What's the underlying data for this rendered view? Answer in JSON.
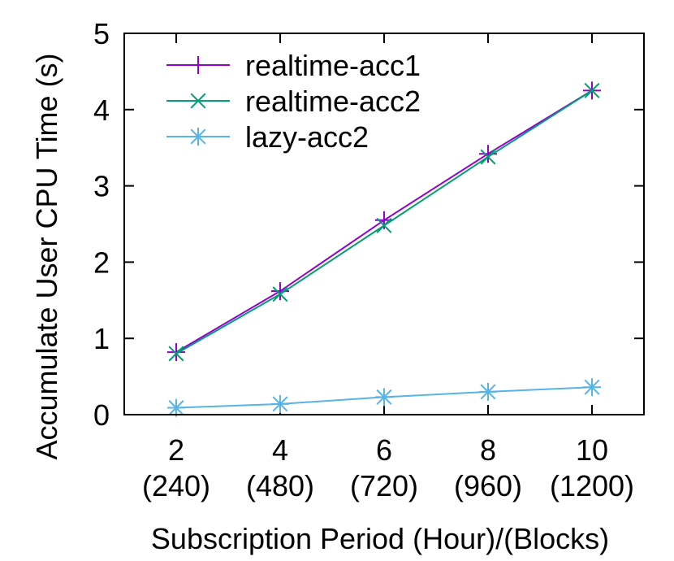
{
  "chart_data": {
    "type": "line",
    "title": "",
    "xlabel": "Subscription Period (Hour)/(Blocks)",
    "ylabel": "Accumulate User CPU Time (s)",
    "x": [
      2,
      4,
      6,
      8,
      10
    ],
    "x_tick_labels": [
      "2",
      "4",
      "6",
      "8",
      "10"
    ],
    "x_tick_sublabels": [
      "(240)",
      "(480)",
      "(720)",
      "(960)",
      "(1200)"
    ],
    "xlim": [
      1,
      11
    ],
    "ylim": [
      0,
      5
    ],
    "y_ticks": [
      0,
      1,
      2,
      3,
      4,
      5
    ],
    "grid": false,
    "legend_position": "top-left",
    "series": [
      {
        "name": "realtime-acc1",
        "values": [
          0.82,
          1.62,
          2.55,
          3.42,
          4.25
        ],
        "color": "#9400d3",
        "marker": "plus"
      },
      {
        "name": "realtime-acc2",
        "values": [
          0.8,
          1.58,
          2.48,
          3.38,
          4.25
        ],
        "color": "#009e73",
        "marker": "cross"
      },
      {
        "name": "lazy-acc2",
        "values": [
          0.09,
          0.14,
          0.23,
          0.3,
          0.36
        ],
        "color": "#56b4e9",
        "marker": "star"
      }
    ]
  }
}
